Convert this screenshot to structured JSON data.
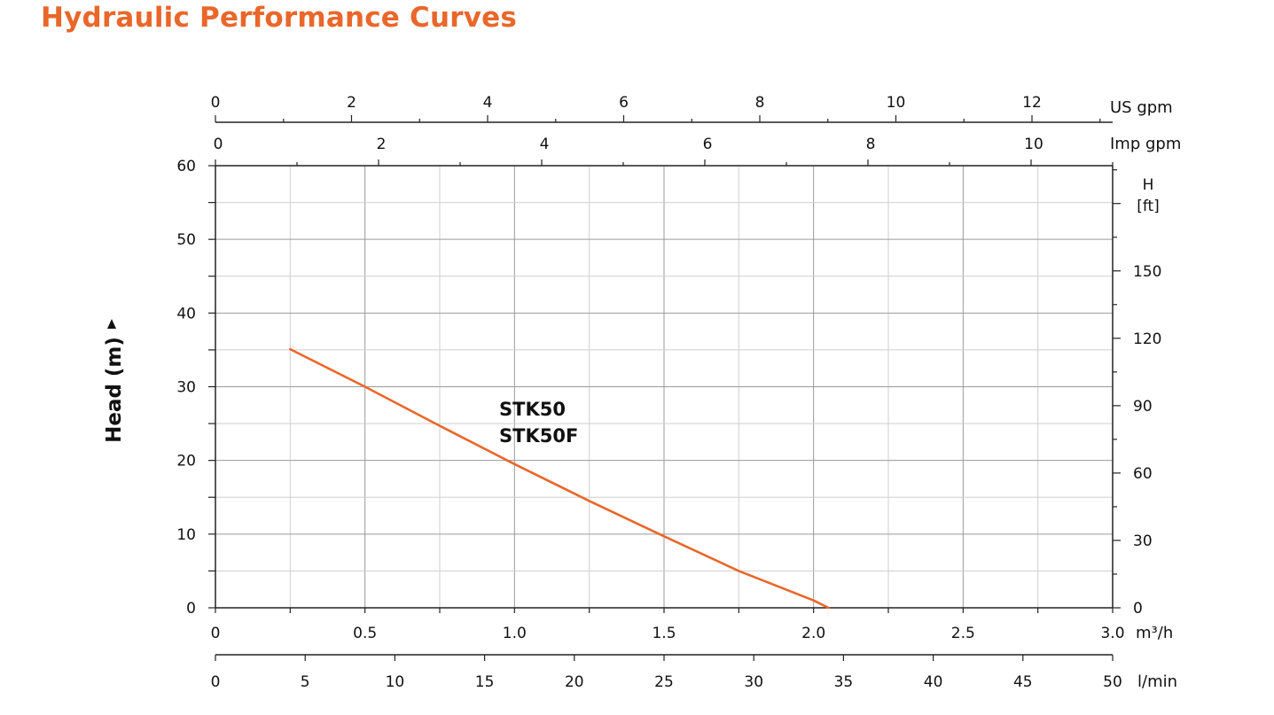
{
  "page": {
    "title": "Hydraulic Performance Curves"
  },
  "chart_data": {
    "type": "line",
    "title": "",
    "ylabel": "Head (m)",
    "ylim": [
      0,
      60
    ],
    "y_ticks": [
      0,
      10,
      20,
      30,
      40,
      50,
      60
    ],
    "grid": true,
    "x_axes": {
      "m3h": {
        "unit": "m³/h",
        "range": [
          0,
          3.0
        ],
        "ticks": [
          "0",
          "0.5",
          "1.0",
          "1.5",
          "2.0",
          "2.5",
          "3.0"
        ]
      },
      "lmin": {
        "unit": "l/min",
        "range": [
          0,
          50
        ],
        "ticks": [
          "0",
          "5",
          "10",
          "15",
          "20",
          "25",
          "30",
          "35",
          "40",
          "45",
          "50"
        ]
      },
      "us_gpm": {
        "unit": "US gpm",
        "ticks": [
          "0",
          "2",
          "4",
          "6",
          "8",
          "10",
          "12"
        ]
      },
      "imp_gpm": {
        "unit": "Imp gpm",
        "ticks": [
          "0",
          "2",
          "4",
          "6",
          "8",
          "10"
        ]
      }
    },
    "y_right": {
      "unit_line1": "H",
      "unit_line2": "[ft]",
      "ticks": [
        "0",
        "30",
        "60",
        "90",
        "120",
        "150"
      ]
    },
    "series": [
      {
        "name": "STK50 / STK50F",
        "label_line1": "STK50",
        "label_line2": "STK50F",
        "color": "#e9672a",
        "x_m3h": [
          0.25,
          0.5,
          0.75,
          1.0,
          1.25,
          1.5,
          1.75,
          2.0,
          2.05
        ],
        "y_m": [
          35.1,
          30.0,
          24.7,
          19.5,
          14.5,
          9.7,
          5.0,
          1.0,
          0.0
        ]
      }
    ]
  }
}
